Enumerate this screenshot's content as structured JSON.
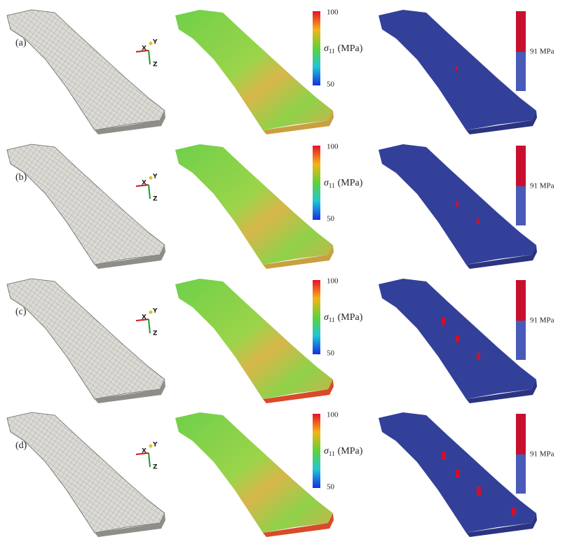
{
  "rows": [
    {
      "label": "(a)",
      "triad": {
        "x": "X",
        "y": "Y",
        "z": "Z"
      },
      "stress_colorbar": {
        "max": 100,
        "min": 50,
        "symbol": "σ",
        "subscript": "11",
        "unit": "(MPa)"
      },
      "threshold_colorbar": {
        "label": "91 MPa"
      }
    },
    {
      "label": "(b)",
      "triad": {
        "x": "X",
        "y": "Y",
        "z": "Z"
      },
      "stress_colorbar": {
        "max": 100,
        "min": 50,
        "symbol": "σ",
        "subscript": "11",
        "unit": "(MPa)"
      },
      "threshold_colorbar": {
        "label": "91 MPa"
      }
    },
    {
      "label": "(c)",
      "triad": {
        "x": "X",
        "y": "Y",
        "z": "Z"
      },
      "stress_colorbar": {
        "max": 100,
        "min": 50,
        "symbol": "σ",
        "subscript": "11",
        "unit": "(MPa)"
      },
      "threshold_colorbar": {
        "label": "91 MPa"
      }
    },
    {
      "label": "(d)",
      "triad": {
        "x": "X",
        "y": "Y",
        "z": "Z"
      },
      "stress_colorbar": {
        "max": 100,
        "min": 50,
        "symbol": "σ",
        "subscript": "11",
        "unit": "(MPa)"
      },
      "threshold_colorbar": {
        "label": "91 MPa"
      }
    }
  ]
}
